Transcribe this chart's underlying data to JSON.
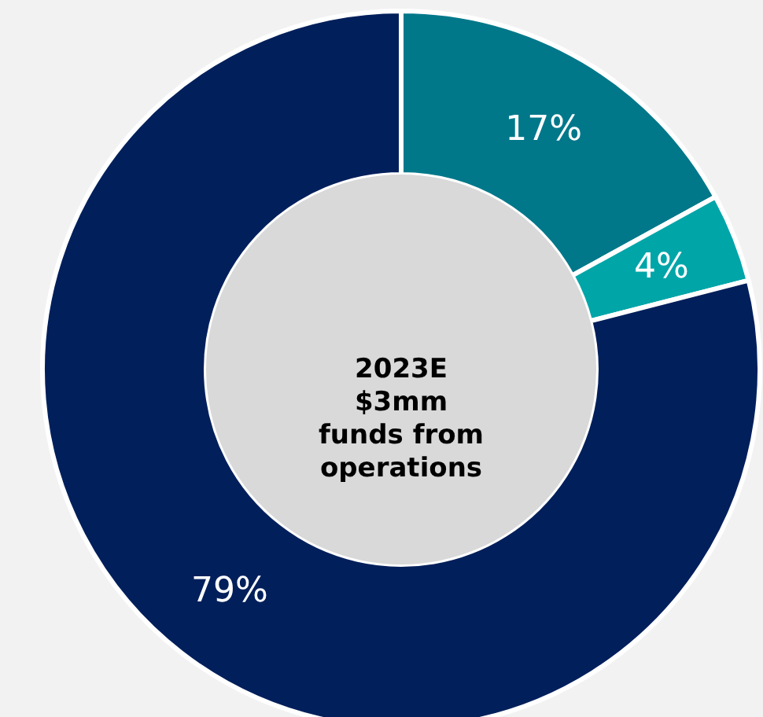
{
  "chart_data": {
    "type": "donut",
    "categories": [
      null,
      null,
      null
    ],
    "values": [
      17,
      4,
      79
    ],
    "colors": [
      "#00788a",
      "#00a5a8",
      "#001f5b"
    ],
    "value_labels": [
      "17%",
      "4%",
      "79%"
    ],
    "annotations": [
      "2023E\n$3mm\nfunds from\noperations"
    ]
  }
}
